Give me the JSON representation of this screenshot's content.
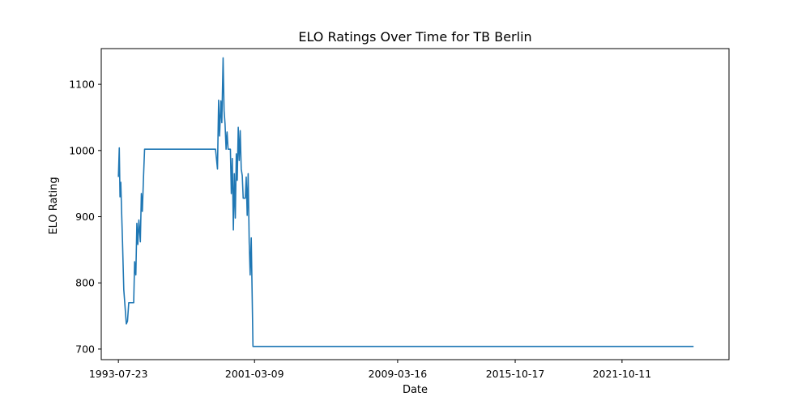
{
  "chart_data": {
    "type": "line",
    "title": "ELO Ratings Over Time for TB Berlin",
    "xlabel": "Date",
    "ylabel": "ELO Rating",
    "x_ticks": [
      "1993-07-23",
      "2001-03-09",
      "2009-03-16",
      "2015-10-17",
      "2021-10-11"
    ],
    "y_ticks": [
      700,
      800,
      900,
      1000,
      1100
    ],
    "xlim": [
      "1992-08-06",
      "2027-10-10"
    ],
    "ylim": [
      684,
      1154
    ],
    "grid": false,
    "legend": "none",
    "series": [
      {
        "color": "#1f77b4",
        "points": [
          [
            "1993-07-23",
            960
          ],
          [
            "1993-08-10",
            1004
          ],
          [
            "1993-08-25",
            930
          ],
          [
            "1993-09-10",
            952
          ],
          [
            "1993-09-25",
            912
          ],
          [
            "1993-10-15",
            862
          ],
          [
            "1993-11-10",
            790
          ],
          [
            "1993-12-05",
            765
          ],
          [
            "1994-01-01",
            738
          ],
          [
            "1994-01-25",
            742
          ],
          [
            "1994-02-20",
            770
          ],
          [
            "1994-06-01",
            770
          ],
          [
            "1994-06-20",
            832
          ],
          [
            "1994-07-15",
            812
          ],
          [
            "1994-08-05",
            890
          ],
          [
            "1994-08-25",
            858
          ],
          [
            "1994-09-15",
            895
          ],
          [
            "1994-10-15",
            862
          ],
          [
            "1994-11-05",
            935
          ],
          [
            "1994-11-25",
            908
          ],
          [
            "1994-12-20",
            962
          ],
          [
            "1995-01-10",
            1002
          ],
          [
            "1999-01-01",
            1002
          ],
          [
            "1999-02-10",
            972
          ],
          [
            "1999-03-05",
            1076
          ],
          [
            "1999-03-25",
            1022
          ],
          [
            "1999-04-20",
            1075
          ],
          [
            "1999-05-10",
            1042
          ],
          [
            "1999-06-05",
            1140
          ],
          [
            "1999-06-25",
            1060
          ],
          [
            "1999-07-15",
            1040
          ],
          [
            "1999-08-05",
            1002
          ],
          [
            "1999-08-25",
            1028
          ],
          [
            "1999-09-15",
            1002
          ],
          [
            "1999-11-01",
            1002
          ],
          [
            "1999-11-20",
            935
          ],
          [
            "1999-12-10",
            988
          ],
          [
            "2000-01-01",
            880
          ],
          [
            "2000-01-20",
            965
          ],
          [
            "2000-02-10",
            898
          ],
          [
            "2000-03-01",
            995
          ],
          [
            "2000-03-20",
            955
          ],
          [
            "2000-04-10",
            1035
          ],
          [
            "2000-04-30",
            985
          ],
          [
            "2000-05-20",
            1030
          ],
          [
            "2000-06-10",
            972
          ],
          [
            "2000-07-01",
            962
          ],
          [
            "2000-07-20",
            928
          ],
          [
            "2000-09-01",
            928
          ],
          [
            "2000-09-20",
            960
          ],
          [
            "2000-10-10",
            902
          ],
          [
            "2000-10-30",
            965
          ],
          [
            "2000-11-20",
            862
          ],
          [
            "2000-12-10",
            812
          ],
          [
            "2001-01-01",
            868
          ],
          [
            "2001-01-20",
            780
          ],
          [
            "2001-02-05",
            704
          ],
          [
            "2025-10-15",
            704
          ]
        ]
      }
    ]
  }
}
